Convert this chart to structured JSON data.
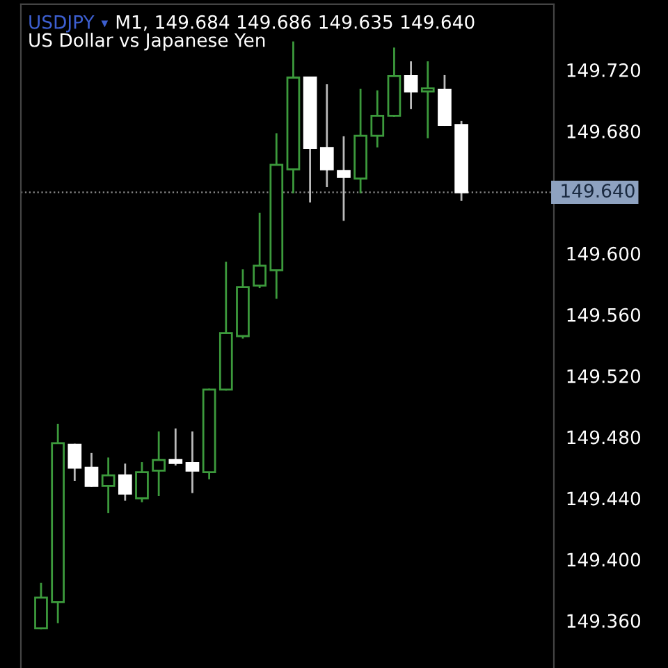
{
  "chart_data": {
    "type": "candlestick",
    "title": "USDJPY",
    "subtitle": "US Dollar vs Japanese Yen",
    "annotations": [
      "▾",
      "M1, 149.684 149.686 149.635 149.640"
    ],
    "categories": [
      null,
      null,
      null,
      null,
      null,
      null,
      null,
      null,
      null,
      null,
      null,
      null,
      null,
      null,
      null,
      null,
      null,
      null,
      null,
      null,
      null,
      null,
      null,
      null,
      null,
      null
    ],
    "ohlc": [
      [
        149.355,
        149.384,
        149.355,
        149.375
      ],
      [
        149.372,
        149.488,
        149.359,
        149.476
      ],
      [
        149.475,
        149.475,
        149.452,
        149.46
      ],
      [
        149.46,
        149.469,
        149.448,
        149.448
      ],
      [
        149.448,
        149.466,
        149.431,
        149.455
      ],
      [
        149.455,
        149.462,
        149.439,
        149.443
      ],
      [
        149.44,
        149.463,
        149.438,
        149.457
      ],
      [
        149.458,
        149.483,
        149.442,
        149.465
      ],
      [
        149.465,
        149.485,
        149.462,
        149.463
      ],
      [
        149.463,
        149.483,
        149.444,
        149.458
      ],
      [
        149.457,
        149.511,
        149.453,
        149.511
      ],
      [
        149.511,
        149.594,
        149.511,
        149.548
      ],
      [
        149.546,
        149.589,
        149.545,
        149.578
      ],
      [
        149.579,
        149.626,
        149.578,
        149.592
      ],
      [
        149.589,
        149.678,
        149.571,
        149.658
      ],
      [
        149.655,
        149.738,
        149.64,
        149.715
      ],
      [
        149.715,
        149.715,
        149.634,
        149.669
      ],
      [
        149.669,
        149.71,
        149.644,
        149.655
      ],
      [
        149.654,
        149.676,
        149.622,
        149.65
      ],
      [
        149.649,
        149.707,
        149.64,
        149.677
      ],
      [
        149.677,
        149.706,
        149.67,
        149.69
      ],
      [
        149.69,
        149.734,
        149.69,
        149.716
      ],
      [
        149.716,
        149.725,
        149.695,
        149.706
      ],
      [
        149.706,
        149.725,
        149.676,
        149.708
      ],
      [
        149.707,
        149.716,
        149.684,
        149.684
      ],
      [
        149.684,
        149.686,
        149.635,
        149.64
      ]
    ],
    "colors": [
      "#3c9a3c",
      "#3c9a3c",
      "#ffffff",
      "#ffffff",
      "#3c9a3c",
      "#ffffff",
      "#3c9a3c",
      "#3c9a3c",
      "#ffffff",
      "#ffffff",
      "#3c9a3c",
      "#3c9a3c",
      "#3c9a3c",
      "#3c9a3c",
      "#3c9a3c",
      "#3c9a3c",
      "#ffffff",
      "#ffffff",
      "#ffffff",
      "#3c9a3c",
      "#3c9a3c",
      "#3c9a3c",
      "#ffffff",
      "#3c9a3c",
      "#ffffff",
      "#ffffff"
    ],
    "ylim": [
      149.329,
      149.763
    ],
    "yticks": [
      {
        "value": 149.36,
        "label": "149.360"
      },
      {
        "value": 149.4,
        "label": "149.400"
      },
      {
        "value": 149.44,
        "label": "149.440"
      },
      {
        "value": 149.48,
        "label": "149.480"
      },
      {
        "value": 149.52,
        "label": "149.520"
      },
      {
        "value": 149.56,
        "label": "149.560"
      },
      {
        "value": 149.6,
        "label": "149.600"
      },
      {
        "value": 149.68,
        "label": "149.680"
      },
      {
        "value": 149.72,
        "label": "149.720"
      }
    ],
    "ref_lines": [
      {
        "axis": "y",
        "value": 149.64,
        "label": "149.640",
        "color": "#8a8a8a",
        "line_style": "dotted"
      }
    ],
    "tick_labels": "y",
    "grid": false
  }
}
